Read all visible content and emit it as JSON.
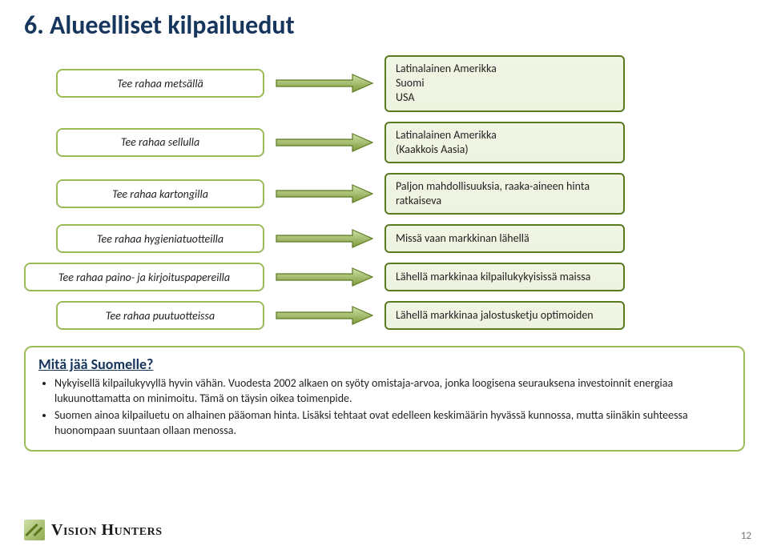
{
  "title": "6. Alueelliset kilpailuedut",
  "rows": [
    {
      "left": "Tee rahaa metsällä",
      "right": "Latinalainen Amerikka\nSuomi\nUSA",
      "leftIndent": true
    },
    {
      "left": "Tee rahaa sellulla",
      "right": "Latinalainen Amerikka\n(Kaakkois Aasia)",
      "leftIndent": true
    },
    {
      "left": "Tee rahaa kartongilla",
      "right": "Paljon mahdollisuuksia, raaka-aineen hinta ratkaiseva",
      "leftIndent": true
    },
    {
      "left": "Tee rahaa hygieniatuotteilla",
      "right": "Missä vaan markkinan lähellä",
      "leftIndent": true
    },
    {
      "left": "Tee rahaa paino- ja kirjoituspapereilla",
      "right": "Lähellä markkinaa kilpailukykyisissä maissa",
      "leftIndent": false
    },
    {
      "left": "Tee rahaa puutuotteissa",
      "right": "Lähellä markkinaa jalostusketju optimoiden",
      "leftIndent": true
    }
  ],
  "arrow": {
    "shaft_color_top": "#cfe0a8",
    "shaft_color_bottom": "#7d9a3b",
    "border_color": "#5a7a20"
  },
  "summary": {
    "title": "Mitä jää Suomelle?",
    "bullets": [
      "Nykyisellä kilpailukyvyllä hyvin vähän. Vuodesta 2002 alkaen on syöty omistaja-arvoa, jonka loogisena seurauksena investoinnit energiaa lukuunottamatta on minimoitu. Tämä on täysin oikea toimenpide.",
      " Suomen ainoa kilpailuetu on alhainen pääoman hinta. Lisäksi tehtaat ovat edelleen keskimäärin hyvässä kunnossa, mutta siinäkin suhteessa huonompaan suuntaan ollaan menossa."
    ]
  },
  "footer": {
    "brand": "Vision Hunters"
  },
  "page_number": "12",
  "colors": {
    "title_color": "#17365d",
    "pill_border": "#9bbb59",
    "box_border": "#5a7a20",
    "box_bg": "#eef3e0",
    "text": "#1a1a1a"
  }
}
